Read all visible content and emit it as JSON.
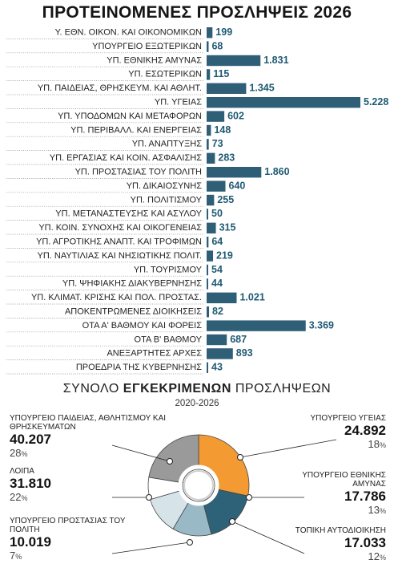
{
  "title": "ΠΡΟΤΕΙΝΟΜΕΝΕΣ ΠΡΟΣΛΗΨΕΙΣ 2026",
  "colors": {
    "bar": "#2e5f76",
    "donut": [
      "#f39a33",
      "#2e6278",
      "#9ab9c7",
      "#d6e4ea",
      "#ffffff",
      "#9a9a9a"
    ],
    "callout_line": "#222222"
  },
  "chart_data": [
    {
      "type": "bar",
      "orientation": "horizontal",
      "title": "ΠΡΟΤΕΙΝΟΜΕΝΕΣ ΠΡΟΣΛΗΨΕΙΣ 2026",
      "categories": [
        "Υ. ΕΘΝ. ΟΙΚΟΝ. ΚΑΙ ΟΙΚΟΝΟΜΙΚΩΝ",
        "ΥΠΟΥΡΓΕΙΟ ΕΞΩΤΕΡΙΚΩΝ",
        "ΥΠ. ΕΘΝΙΚΗΣ ΑΜΥΝΑΣ",
        "ΥΠ. ΕΣΩΤΕΡΙΚΩΝ",
        "ΥΠ. ΠΑΙΔΕΙΑΣ, ΘΡΗΣΚΕΥΜ. ΚΑΙ ΑΘΛΗΤ.",
        "ΥΠ. ΥΓΕΙΑΣ",
        "ΥΠ. ΥΠΟΔΟΜΩΝ ΚΑΙ ΜΕΤΑΦΟΡΩΝ",
        "ΥΠ. ΠΕΡΙΒΑΛΛ. ΚΑΙ ΕΝΕΡΓΕΙΑΣ",
        "ΥΠ. ΑΝΑΠΤΥΞΗΣ",
        "ΥΠ. ΕΡΓΑΣΙΑΣ ΚΑΙ ΚΟΙΝ. ΑΣΦΑΛΙΣΗΣ",
        "ΥΠ. ΠΡΟΣΤΑΣΙΑΣ ΤΟΥ ΠΟΛΙΤΗ",
        "ΥΠ. ΔΙΚΑΙΟΣΥΝΗΣ",
        "ΥΠ. ΠΟΛΙΤΙΣΜΟΥ",
        "ΥΠ. ΜΕΤΑΝΑΣΤΕΥΣΗΣ ΚΑΙ ΑΣΥΛΟΥ",
        "ΥΠ. ΚΟΙΝ. ΣΥΝΟΧΗΣ ΚΑΙ ΟΙΚΟΓΕΝΕΙΑΣ",
        "ΥΠ. ΑΓΡΟΤΙΚΗΣ ΑΝΑΠΤ. ΚΑΙ ΤΡΟΦΙΜΩΝ",
        "ΥΠ. ΝΑΥΤΙΛΙΑΣ ΚΑΙ ΝΗΣΙΩΤΙΚΗΣ ΠΟΛΙΤ.",
        "ΥΠ. ΤΟΥΡΙΣΜΟΥ",
        "ΥΠ. ΨΗΦΙΑΚΗΣ ΔΙΑΚΥΒΕΡΝΗΣΗΣ",
        "ΥΠ. ΚΛΙΜΑΤ. ΚΡΙΣΗΣ ΚΑΙ ΠΟΛ. ΠΡΟΣΤΑΣ.",
        "ΑΠΟΚΕΝΤΡΩΜΕΝΕΣ ΔΙΟΙΚΗΣΕΙΣ",
        "ΟΤΑ Α' ΒΑΘΜΟΥ ΚΑΙ ΦΟΡΕΙΣ",
        "ΟΤΑ Β' ΒΑΘΜΟΥ",
        "ΑΝΕΞΑΡΤΗΤΕΣ ΑΡΧΕΣ",
        "ΠΡΟΕΔΡΙΑ ΤΗΣ ΚΥΒΕΡΝΗΣΗΣ"
      ],
      "values": [
        199,
        68,
        1831,
        115,
        1345,
        5228,
        602,
        148,
        73,
        283,
        1860,
        640,
        255,
        50,
        315,
        64,
        219,
        54,
        44,
        1021,
        82,
        3369,
        687,
        893,
        43
      ],
      "value_labels": [
        "199",
        "68",
        "1.831",
        "115",
        "1.345",
        "5.228",
        "602",
        "148",
        "73",
        "283",
        "1.860",
        "640",
        "255",
        "50",
        "315",
        "64",
        "219",
        "54",
        "44",
        "1.021",
        "82",
        "3.369",
        "687",
        "893",
        "43"
      ],
      "grid": false
    },
    {
      "type": "pie",
      "variant": "donut",
      "title_parts": [
        "ΣΥΝΟΛΟ",
        "ΕΓΚΕΚΡΙΜΕΝΩΝ",
        "ΠΡΟΣΛΗΨΕΩΝ"
      ],
      "subtitle": "2020-2026",
      "slices": [
        {
          "label": "ΥΠΟΥΡΓΕΙΟ ΠΑΙΔΕΙΑΣ, ΑΘΛΗΤΙΣΜΟΥ ΚΑΙ ΘΡΗΣΚΕΥΜΑΤΩΝ",
          "value": 40207,
          "value_label": "40.207",
          "percent": 28
        },
        {
          "label": "ΥΠΟΥΡΓΕΙΟ ΥΓΕΙΑΣ",
          "value": 24892,
          "value_label": "24.892",
          "percent": 18
        },
        {
          "label": "ΥΠΟΥΡΓΕΙΟ ΕΘΝΙΚΗΣ ΑΜΥΝΑΣ",
          "value": 17786,
          "value_label": "17.786",
          "percent": 13
        },
        {
          "label": "ΤΟΠΙΚΗ ΑΥΤΟΔΙΟΙΚΗΣΗ",
          "value": 17033,
          "value_label": "17.033",
          "percent": 12
        },
        {
          "label": "ΥΠΟΥΡΓΕΙΟ ΠΡΟΣΤΑΣΙΑΣ ΤΟΥ ΠΟΛΙΤΗ",
          "value": 10019,
          "value_label": "10.019",
          "percent": 7
        },
        {
          "label": "ΛΟΙΠΑ",
          "value": 31810,
          "value_label": "31.810",
          "percent": 22
        }
      ],
      "percent_suffix": "%"
    }
  ]
}
